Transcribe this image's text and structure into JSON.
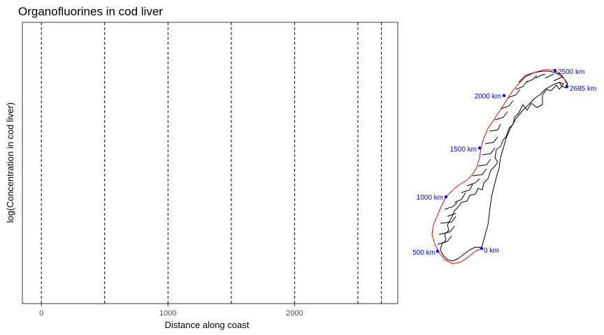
{
  "chart_data": [
    {
      "type": "line",
      "title": "Organofluorines in cod liver",
      "xlabel": "Distance along coast",
      "ylabel": "log(Concentration in cod liver)",
      "xlim": [
        -150,
        2815
      ],
      "xticks": [
        0,
        1000,
        2000
      ],
      "vlines": [
        0,
        500,
        1000,
        1500,
        2000,
        2500,
        2685
      ],
      "grid": false,
      "series": []
    },
    {
      "type": "scatter",
      "colors": {
        "coastline": "#000000",
        "route": "#ff0000",
        "points": "#0000ff"
      },
      "points": [
        {
          "label": "0 km"
        },
        {
          "label": "500 km"
        },
        {
          "label": "1000 km"
        },
        {
          "label": "1500 km"
        },
        {
          "label": "2000 km"
        },
        {
          "label": "2500 km"
        },
        {
          "label": "2685 km"
        }
      ]
    }
  ]
}
